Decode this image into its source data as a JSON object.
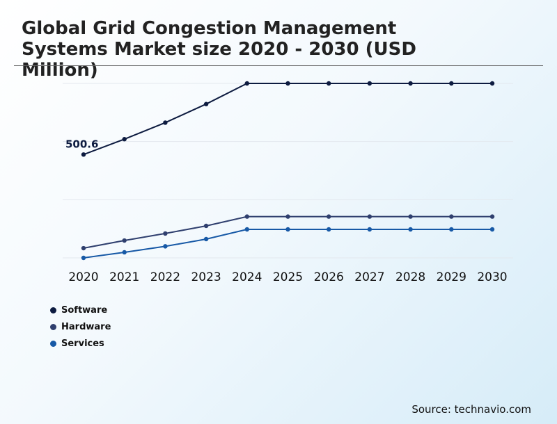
{
  "title": "Global Grid Congestion Management Systems Market size 2020 - 2030 (USD Million)",
  "source": "Source: technavio.com",
  "chart_data": {
    "type": "line",
    "x": [
      "2020",
      "2021",
      "2022",
      "2023",
      "2024",
      "2025",
      "2026",
      "2027",
      "2028",
      "2029",
      "2030"
    ],
    "ylim": [
      0,
      900
    ],
    "grid": true,
    "legend": "bottom-left",
    "series": [
      {
        "name": "Software",
        "color": "#0d1b40",
        "values": [
          500.6,
          575,
          655,
          745,
          845,
          845,
          845,
          845,
          845,
          845,
          845
        ]
      },
      {
        "name": "Hardware",
        "color": "#2f3f6e",
        "values": [
          47,
          84,
          118,
          155,
          200,
          200,
          200,
          200,
          200,
          200,
          200
        ]
      },
      {
        "name": "Services",
        "color": "#1759a6",
        "values": [
          0,
          27,
          56,
          91,
          138,
          138,
          138,
          138,
          138,
          138,
          138
        ]
      }
    ],
    "annotations": [
      {
        "series": 0,
        "index": 0,
        "text": "500.6"
      }
    ]
  }
}
